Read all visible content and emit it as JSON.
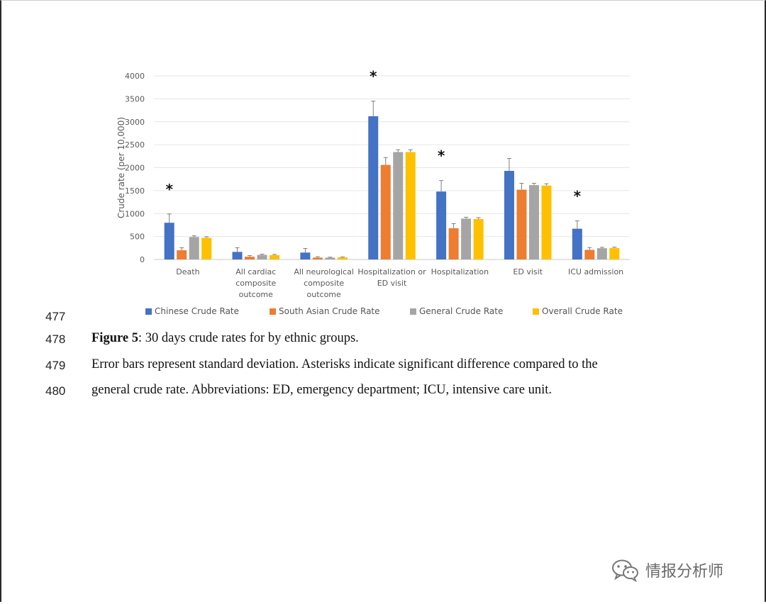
{
  "chart_data": {
    "type": "bar",
    "ylabel": "Crude rate (per 10,000)",
    "ylim": [
      0,
      4000
    ],
    "yticks": [
      "0",
      "500",
      "1000",
      "1500",
      "2000",
      "2500",
      "3000",
      "3500",
      "4000"
    ],
    "grid": true,
    "error_bars": true,
    "legend_position": "bottom",
    "categories": [
      [
        "Death"
      ],
      [
        "All cardiac",
        "composite",
        "outcome"
      ],
      [
        "All neurological",
        "composite",
        "outcome"
      ],
      [
        "Hospitalization or",
        "ED visit"
      ],
      [
        "Hospitalization"
      ],
      [
        "ED visit"
      ],
      [
        "ICU admission"
      ]
    ],
    "significance_marks": [
      "*",
      "",
      "",
      "*",
      "*",
      "",
      "*"
    ],
    "series": [
      {
        "name": "Chinese Crude Rate",
        "color": "#4472C4",
        "values": [
          800,
          165,
          150,
          3120,
          1480,
          1930,
          670
        ],
        "errors": [
          190,
          90,
          90,
          330,
          240,
          270,
          170
        ]
      },
      {
        "name": "South Asian Crude Rate",
        "color": "#ED7D31",
        "values": [
          200,
          60,
          40,
          2060,
          680,
          1520,
          210
        ],
        "errors": [
          55,
          25,
          20,
          160,
          100,
          140,
          50
        ]
      },
      {
        "name": "General Crude Rate",
        "color": "#A5A5A5",
        "values": [
          490,
          100,
          40,
          2340,
          890,
          1620,
          245
        ],
        "errors": [
          25,
          15,
          10,
          50,
          30,
          40,
          20
        ]
      },
      {
        "name": "Overall Crude Rate",
        "color": "#FFC000",
        "values": [
          470,
          95,
          45,
          2340,
          880,
          1610,
          250
        ],
        "errors": [
          25,
          15,
          10,
          50,
          30,
          40,
          20
        ]
      }
    ]
  },
  "document": {
    "line_numbers": [
      "477",
      "478",
      "479",
      "480"
    ],
    "caption_label": "Figure 5",
    "caption_text": ": 30 days crude rates for by ethnic groups.",
    "note_line_1": "Error bars represent standard deviation. Asterisks indicate significant difference compared to the",
    "note_line_2": "general crude rate. Abbreviations: ED, emergency department; ICU, intensive care unit."
  },
  "watermark": {
    "text": "情报分析师",
    "icon": "wechat-icon"
  }
}
